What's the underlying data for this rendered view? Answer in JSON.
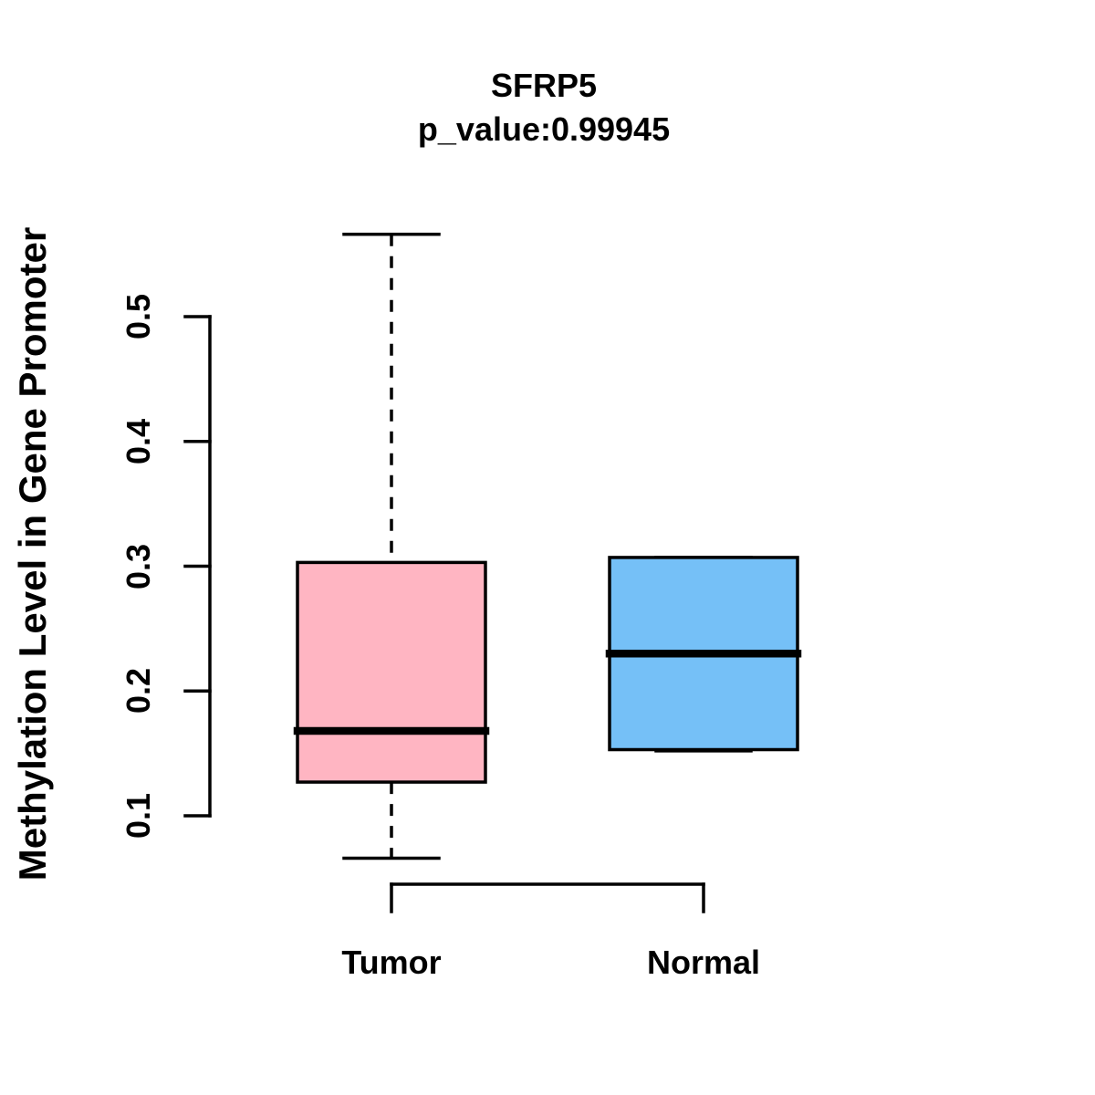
{
  "title": {
    "line1": "SFRP5",
    "line2": "p_value:0.99945"
  },
  "axes": {
    "y": {
      "label": "Methylation Level in Gene Promoter",
      "tick_labels": [
        "0.1",
        "0.2",
        "0.3",
        "0.4",
        "0.5"
      ]
    },
    "x": {
      "labels": [
        "Tumor",
        "Normal"
      ]
    }
  },
  "chart_data": {
    "type": "boxplot",
    "title": "SFRP5",
    "subtitle": "p_value:0.99945",
    "gene": "SFRP5",
    "p_value": 0.99945,
    "ylabel": "Methylation Level in Gene Promoter",
    "xlabel": "",
    "categories": [
      "Tumor",
      "Normal"
    ],
    "series": [
      {
        "name": "Tumor",
        "whisker_low": 0.066,
        "q1": 0.127,
        "median": 0.168,
        "q3": 0.303,
        "whisker_high": 0.566,
        "fill_color": "#FFB5C2"
      },
      {
        "name": "Normal",
        "whisker_low": 0.152,
        "q1": 0.153,
        "median": 0.23,
        "q3": 0.307,
        "whisker_high": 0.307,
        "fill_color": "#75C0F7"
      }
    ],
    "y_ticks": [
      0.1,
      0.2,
      0.3,
      0.4,
      0.5
    ],
    "ylim": [
      0.066,
      0.566
    ],
    "grid": false,
    "legend": null
  },
  "colors": {
    "tumor_fill": "#FFB5C2",
    "normal_fill": "#75C0F7",
    "stroke": "#000000",
    "background": "#FFFFFF"
  }
}
